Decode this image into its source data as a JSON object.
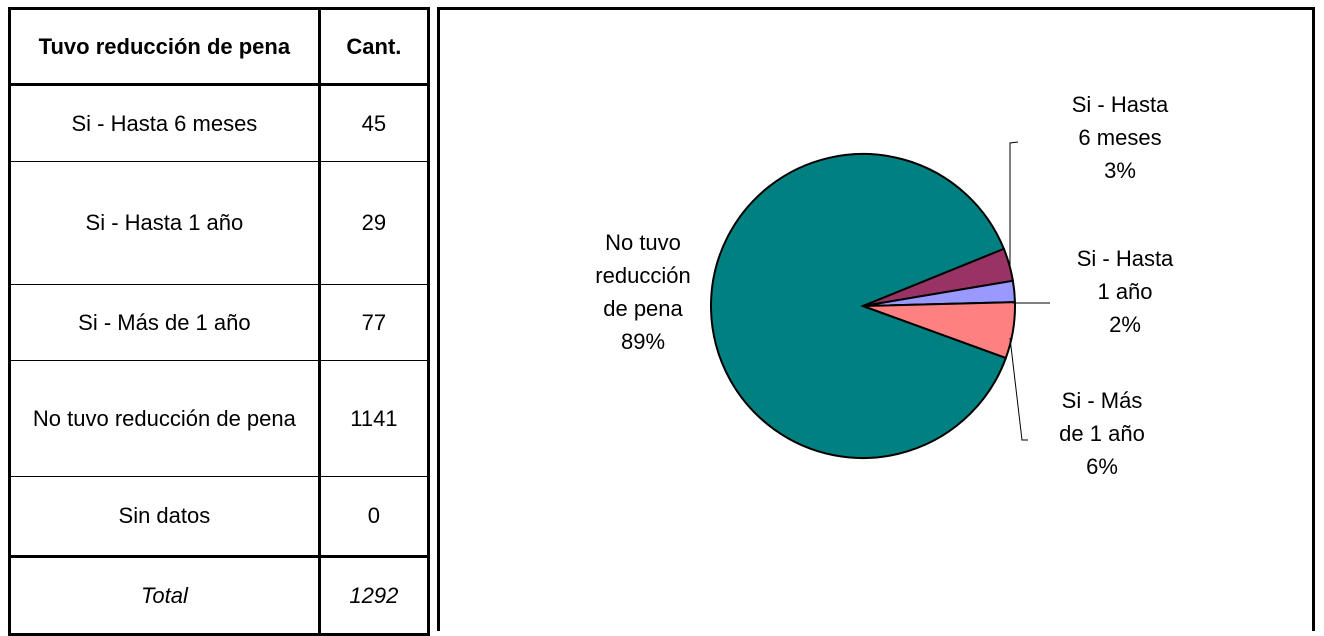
{
  "table": {
    "header_category": "Tuvo reducción de pena",
    "header_count": "Cant.",
    "rows": [
      {
        "label": "Si - Hasta 6 meses",
        "value": "45"
      },
      {
        "label": "Si - Hasta 1 año",
        "value": "29"
      },
      {
        "label": "Si - Más de 1 año",
        "value": "77"
      },
      {
        "label": "No tuvo reducción de pena",
        "value": "1141"
      },
      {
        "label": "Sin datos",
        "value": "0"
      }
    ],
    "total_label": "Total",
    "total_value": "1292"
  },
  "chart_data": {
    "type": "pie",
    "slices": [
      {
        "name": "No tuvo reducción de pena",
        "value": 1141,
        "percent": "89%",
        "color": "#008080",
        "label_lines": [
          "No tuvo",
          "reducción",
          "de pena",
          "89%"
        ]
      },
      {
        "name": "Si - Hasta 6 meses",
        "value": 45,
        "percent": "3%",
        "color": "#993366",
        "label_lines": [
          "Si - Hasta",
          "6 meses",
          "3%"
        ]
      },
      {
        "name": "Si - Hasta 1 año",
        "value": 29,
        "percent": "2%",
        "color": "#9999FF",
        "label_lines": [
          "Si - Hasta",
          "1 año",
          "2%"
        ]
      },
      {
        "name": "Si - Más de 1 año",
        "value": 77,
        "percent": "6%",
        "color": "#FF8080",
        "label_lines": [
          "Si - Más",
          "de 1 año",
          "6%"
        ]
      }
    ]
  }
}
